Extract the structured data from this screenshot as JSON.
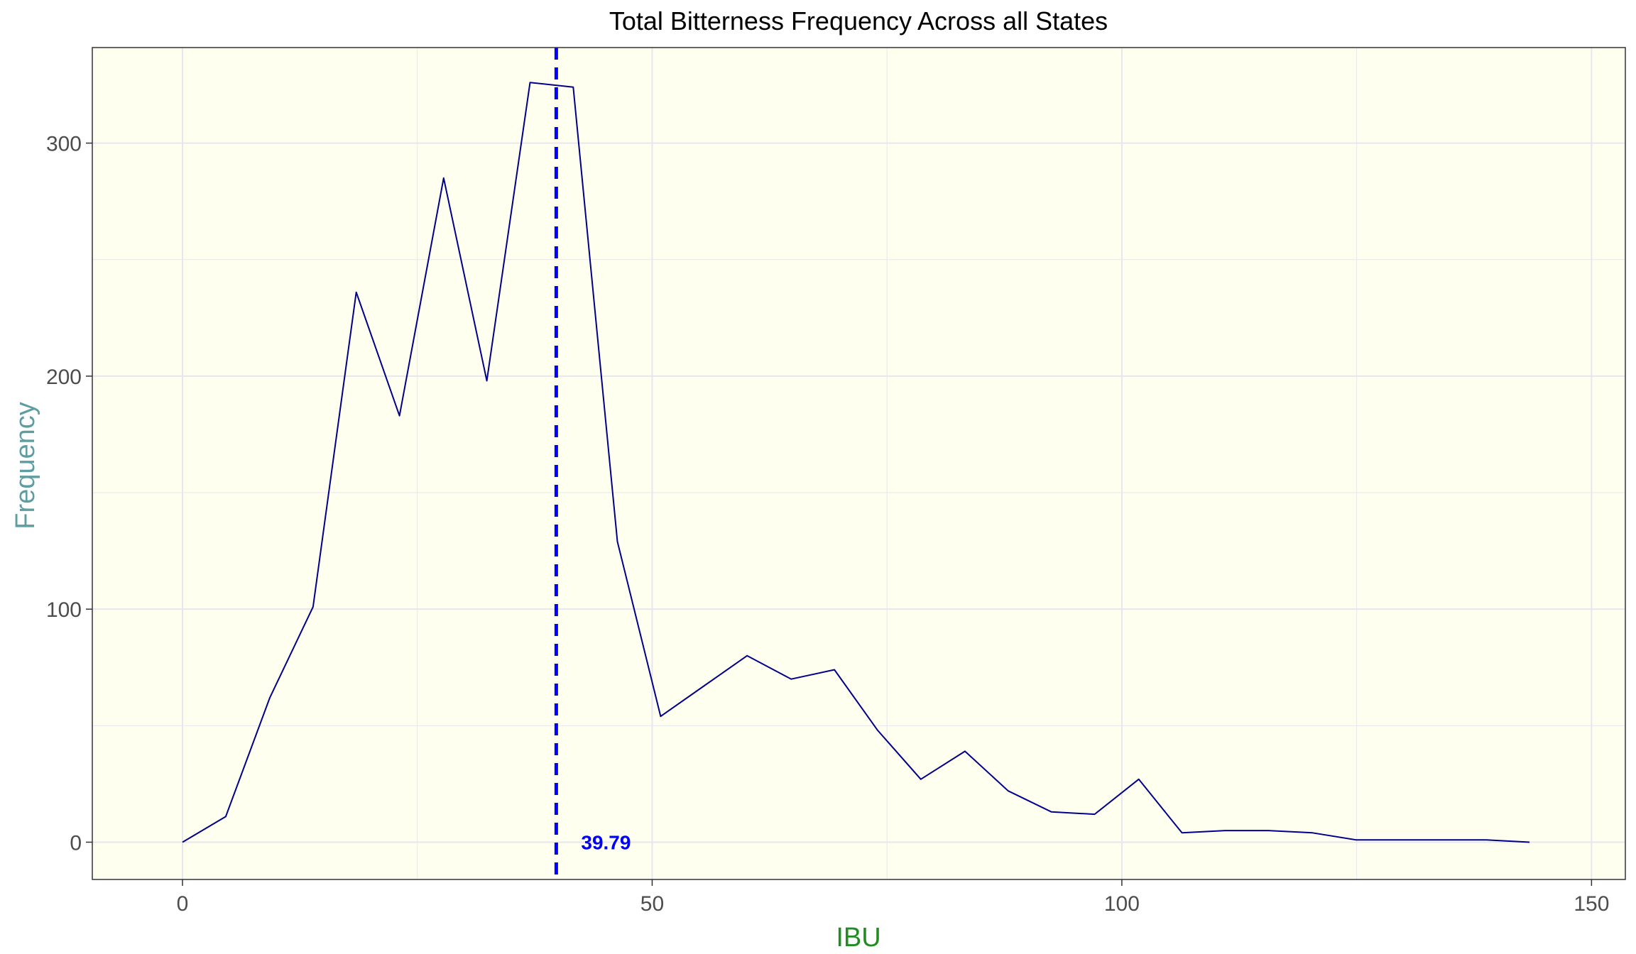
{
  "chart_data": {
    "type": "line",
    "title": "Total Bitterness Frequency Across all States",
    "xlabel": "IBU",
    "ylabel": "Frequency",
    "xlim": [
      -9.6,
      153.6
    ],
    "ylim": [
      -16,
      341
    ],
    "x_ticks": [
      0,
      50,
      100,
      150
    ],
    "x_tick_labels": [
      "0",
      "50",
      "100",
      "150"
    ],
    "y_ticks": [
      0,
      100,
      200,
      300
    ],
    "y_tick_labels": [
      "0",
      "100",
      "200",
      "300"
    ],
    "grid": true,
    "series": [
      {
        "color": "#00008b",
        "x": [
          0,
          4.6,
          9.3,
          13.9,
          18.5,
          23.1,
          27.8,
          32.4,
          37.0,
          41.6,
          46.3,
          50.9,
          55.5,
          60.1,
          64.8,
          69.4,
          74.0,
          78.6,
          83.3,
          87.9,
          92.5,
          97.1,
          101.8,
          106.4,
          111.0,
          115.6,
          120.3,
          124.9,
          129.5,
          134.1,
          138.8,
          143.4
        ],
        "y": [
          0,
          11,
          62,
          101,
          236,
          183,
          285,
          198,
          326,
          324,
          129,
          54,
          67,
          80,
          70,
          74,
          48,
          27,
          39,
          22,
          13,
          12,
          27,
          4,
          5,
          5,
          4,
          1,
          1,
          1,
          1,
          0
        ]
      }
    ],
    "mean_line": {
      "x": 39.79,
      "label": "39.79",
      "color": "#0000ff",
      "style": "dashed"
    },
    "colors": {
      "panel_background": "#fffff0",
      "grid": "#e6e6ee",
      "line": "#00008b",
      "mean_line": "#0000ff",
      "xlabel": "#228b22",
      "ylabel": "#5f9ea0",
      "title": "#000000",
      "ticks": "#4d4d4d"
    }
  }
}
